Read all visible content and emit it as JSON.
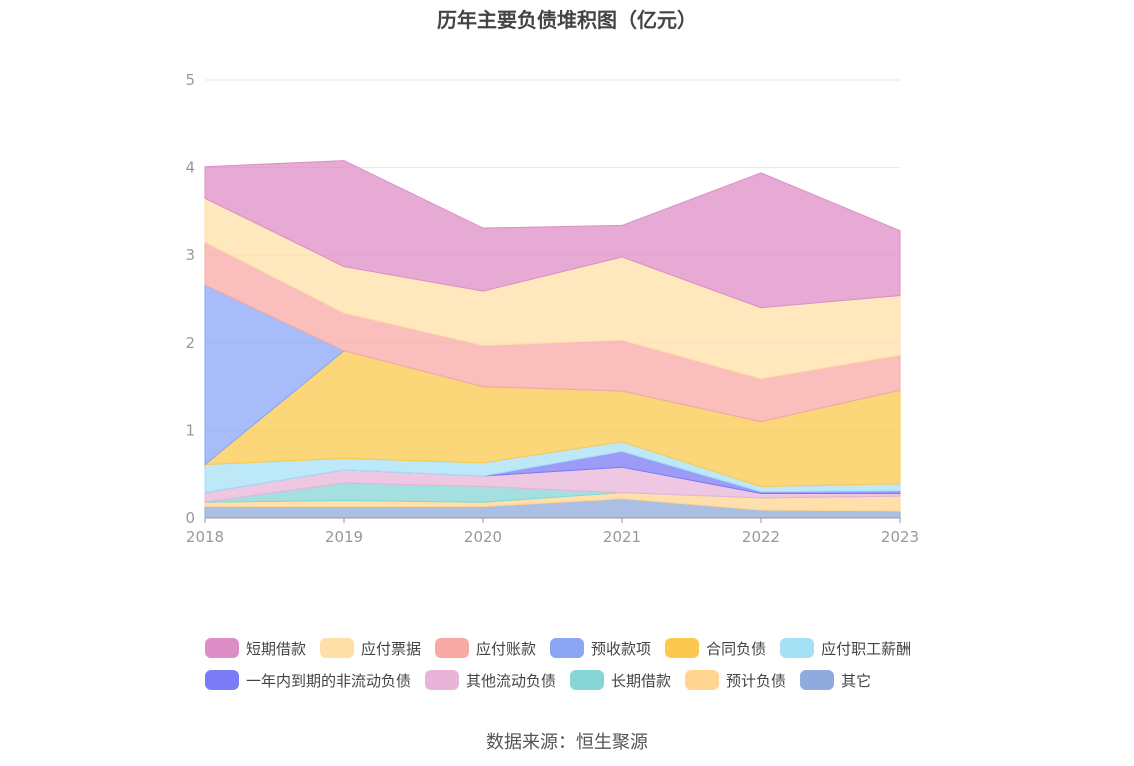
{
  "chart_data": {
    "type": "area",
    "stacked": true,
    "title": "历年主要负债堆积图（亿元）",
    "x": [
      "2018",
      "2019",
      "2020",
      "2021",
      "2022",
      "2023"
    ],
    "ylim": [
      0,
      5
    ],
    "yticks": [
      "0",
      "1",
      "2",
      "3",
      "4",
      "5"
    ],
    "grid": true,
    "legend_position": "bottom",
    "series": [
      {
        "name": "其它",
        "color": "#8faadc",
        "values": [
          0.13,
          0.13,
          0.13,
          0.22,
          0.09,
          0.08
        ]
      },
      {
        "name": "预计负债",
        "color": "#ffd591",
        "values": [
          0.05,
          0.07,
          0.05,
          0.07,
          0.14,
          0.17
        ]
      },
      {
        "name": "长期借款",
        "color": "#87d6d6",
        "values": [
          0.0,
          0.2,
          0.18,
          0.0,
          0.0,
          0.0
        ]
      },
      {
        "name": "其他流动负债",
        "color": "#e8b4d8",
        "values": [
          0.11,
          0.15,
          0.12,
          0.29,
          0.05,
          0.03
        ]
      },
      {
        "name": "一年内到期的非流动负债",
        "color": "#7b7bf5",
        "values": [
          0.0,
          0.0,
          0.0,
          0.18,
          0.02,
          0.03
        ]
      },
      {
        "name": "应付职工薪酬",
        "color": "#a6e0f5",
        "values": [
          0.32,
          0.13,
          0.15,
          0.11,
          0.06,
          0.08
        ]
      },
      {
        "name": "合同负债",
        "color": "#fbc94d",
        "values": [
          0.0,
          1.23,
          0.87,
          0.58,
          0.74,
          1.07
        ]
      },
      {
        "name": "预收款项",
        "color": "#8aa6f5",
        "values": [
          2.05,
          0.0,
          0.0,
          0.0,
          0.0,
          0.0
        ]
      },
      {
        "name": "应付账款",
        "color": "#f8a9a5",
        "values": [
          0.49,
          0.43,
          0.47,
          0.58,
          0.49,
          0.4
        ]
      },
      {
        "name": "应付票据",
        "color": "#ffdfa8",
        "values": [
          0.5,
          0.53,
          0.62,
          0.95,
          0.81,
          0.68
        ]
      },
      {
        "name": "短期借款",
        "color": "#dd8ec6",
        "values": [
          0.36,
          1.21,
          0.72,
          0.36,
          1.54,
          0.74
        ]
      }
    ],
    "legend": [
      "短期借款",
      "应付票据",
      "应付账款",
      "预收款项",
      "合同负债",
      "应付职工薪酬",
      "一年内到期的非流动负债",
      "其他流动负债",
      "长期借款",
      "预计负债",
      "其它"
    ]
  },
  "source": "数据来源：恒生聚源"
}
